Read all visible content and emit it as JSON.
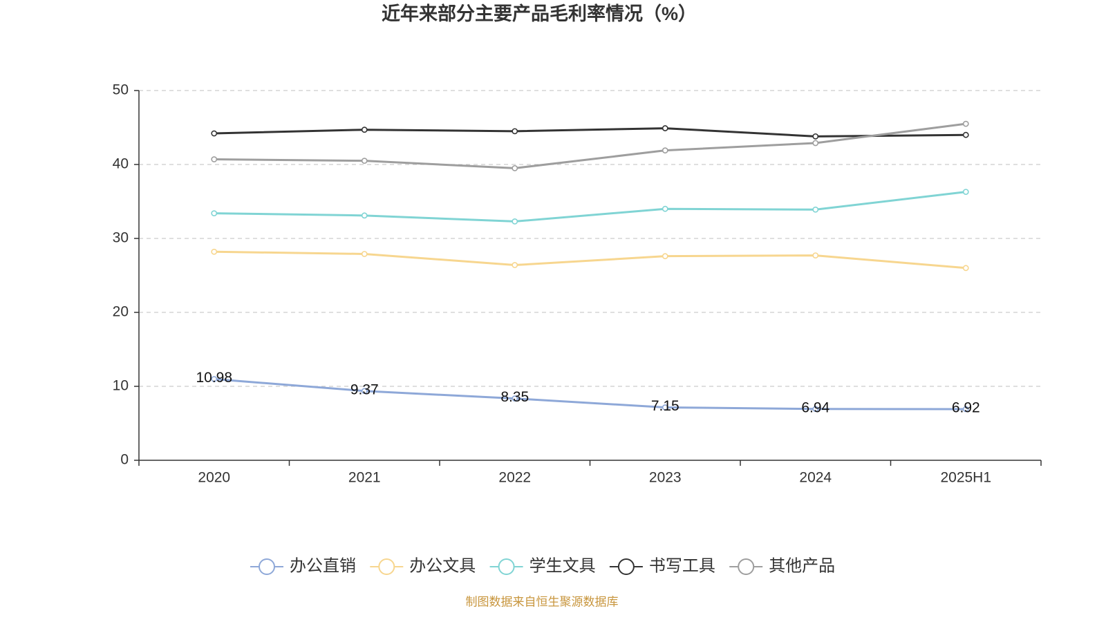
{
  "source": "制图数据来自恒生聚源数据库",
  "colors": {
    "title_text": "#333333",
    "source_text": "#c8963e",
    "axis": "#333333",
    "grid": "#cccccc"
  },
  "chart_data": {
    "type": "line",
    "title": "近年来部分主要产品毛利率情况（%）",
    "xlabel": "",
    "ylabel": "",
    "categories": [
      "2020",
      "2021",
      "2022",
      "2023",
      "2024",
      "2025H1"
    ],
    "ylim": [
      0,
      50
    ],
    "yticks": [
      0,
      10,
      20,
      30,
      40,
      50
    ],
    "grid": true,
    "legend": "bottom-center",
    "series": [
      {
        "name": "办公直销",
        "color": "#8ea8d8",
        "values": [
          10.98,
          9.37,
          8.35,
          7.15,
          6.94,
          6.92
        ],
        "data_labels": true
      },
      {
        "name": "办公文具",
        "color": "#f7d68f",
        "values": [
          28.2,
          27.9,
          26.4,
          27.6,
          27.7,
          26.0
        ],
        "data_labels": false
      },
      {
        "name": "学生文具",
        "color": "#80d4d4",
        "values": [
          33.4,
          33.1,
          32.3,
          34.0,
          33.9,
          36.3
        ],
        "data_labels": false
      },
      {
        "name": "书写工具",
        "color": "#333333",
        "values": [
          44.2,
          44.7,
          44.5,
          44.9,
          43.8,
          44.0
        ],
        "data_labels": false
      },
      {
        "name": "其他产品",
        "color": "#9e9e9e",
        "values": [
          40.7,
          40.5,
          39.5,
          41.9,
          42.9,
          45.5
        ],
        "data_labels": false
      }
    ]
  }
}
